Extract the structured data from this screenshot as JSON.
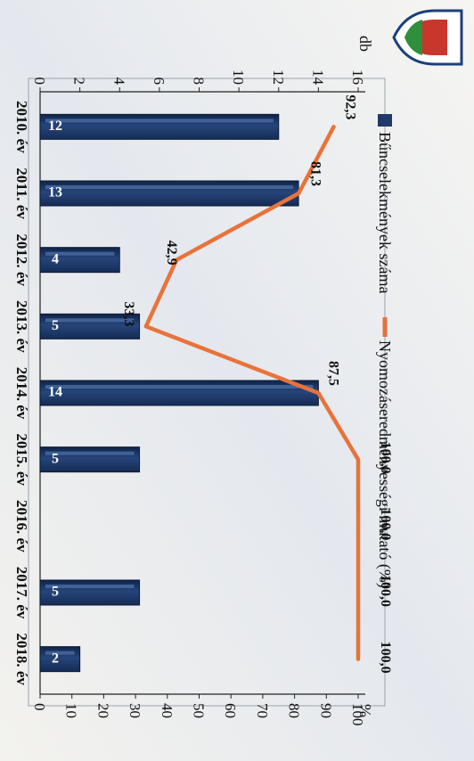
{
  "chart_data": {
    "type": "bar",
    "categories": [
      "2010. év",
      "2011. év",
      "2012. év",
      "2013. év",
      "2014. év",
      "2015. év",
      "2016. év",
      "2017. év",
      "2018. év"
    ],
    "series": [
      {
        "name": "Bűncselekmények száma",
        "type": "bar",
        "axis": "left",
        "values": [
          12,
          13,
          4,
          5,
          14,
          5,
          null,
          5,
          2
        ],
        "labels": [
          "12",
          "13",
          "4",
          "5",
          "14",
          "5",
          "",
          "5",
          "2"
        ]
      },
      {
        "name": "Nyomozáseredményességi mutató (%)",
        "type": "line",
        "axis": "right",
        "values": [
          92.3,
          81.3,
          42.9,
          33.3,
          87.5,
          100.0,
          100.0,
          100.0,
          100.0
        ],
        "labels": [
          "92,3",
          "81,3",
          "42,9",
          "33,3",
          "87,5",
          "100,0",
          "100,0",
          "100,0",
          "100,0"
        ]
      }
    ],
    "left_axis": {
      "label": "db",
      "min": 0,
      "max": 16,
      "ticks": [
        "0",
        "2",
        "4",
        "6",
        "8",
        "10",
        "12",
        "14",
        "16"
      ]
    },
    "right_axis": {
      "label": "%",
      "min": 0,
      "max": 100,
      "ticks": [
        "0",
        "10",
        "20",
        "30",
        "40",
        "50",
        "60",
        "70",
        "80",
        "90",
        "100"
      ]
    },
    "legend_position": "top",
    "orientation": "rotated-90-clockwise",
    "grid": false,
    "colors": {
      "bar": "#1f3a68",
      "bar_light": "#5a7fb8",
      "line": "#e8733a",
      "text": "#111111"
    }
  }
}
